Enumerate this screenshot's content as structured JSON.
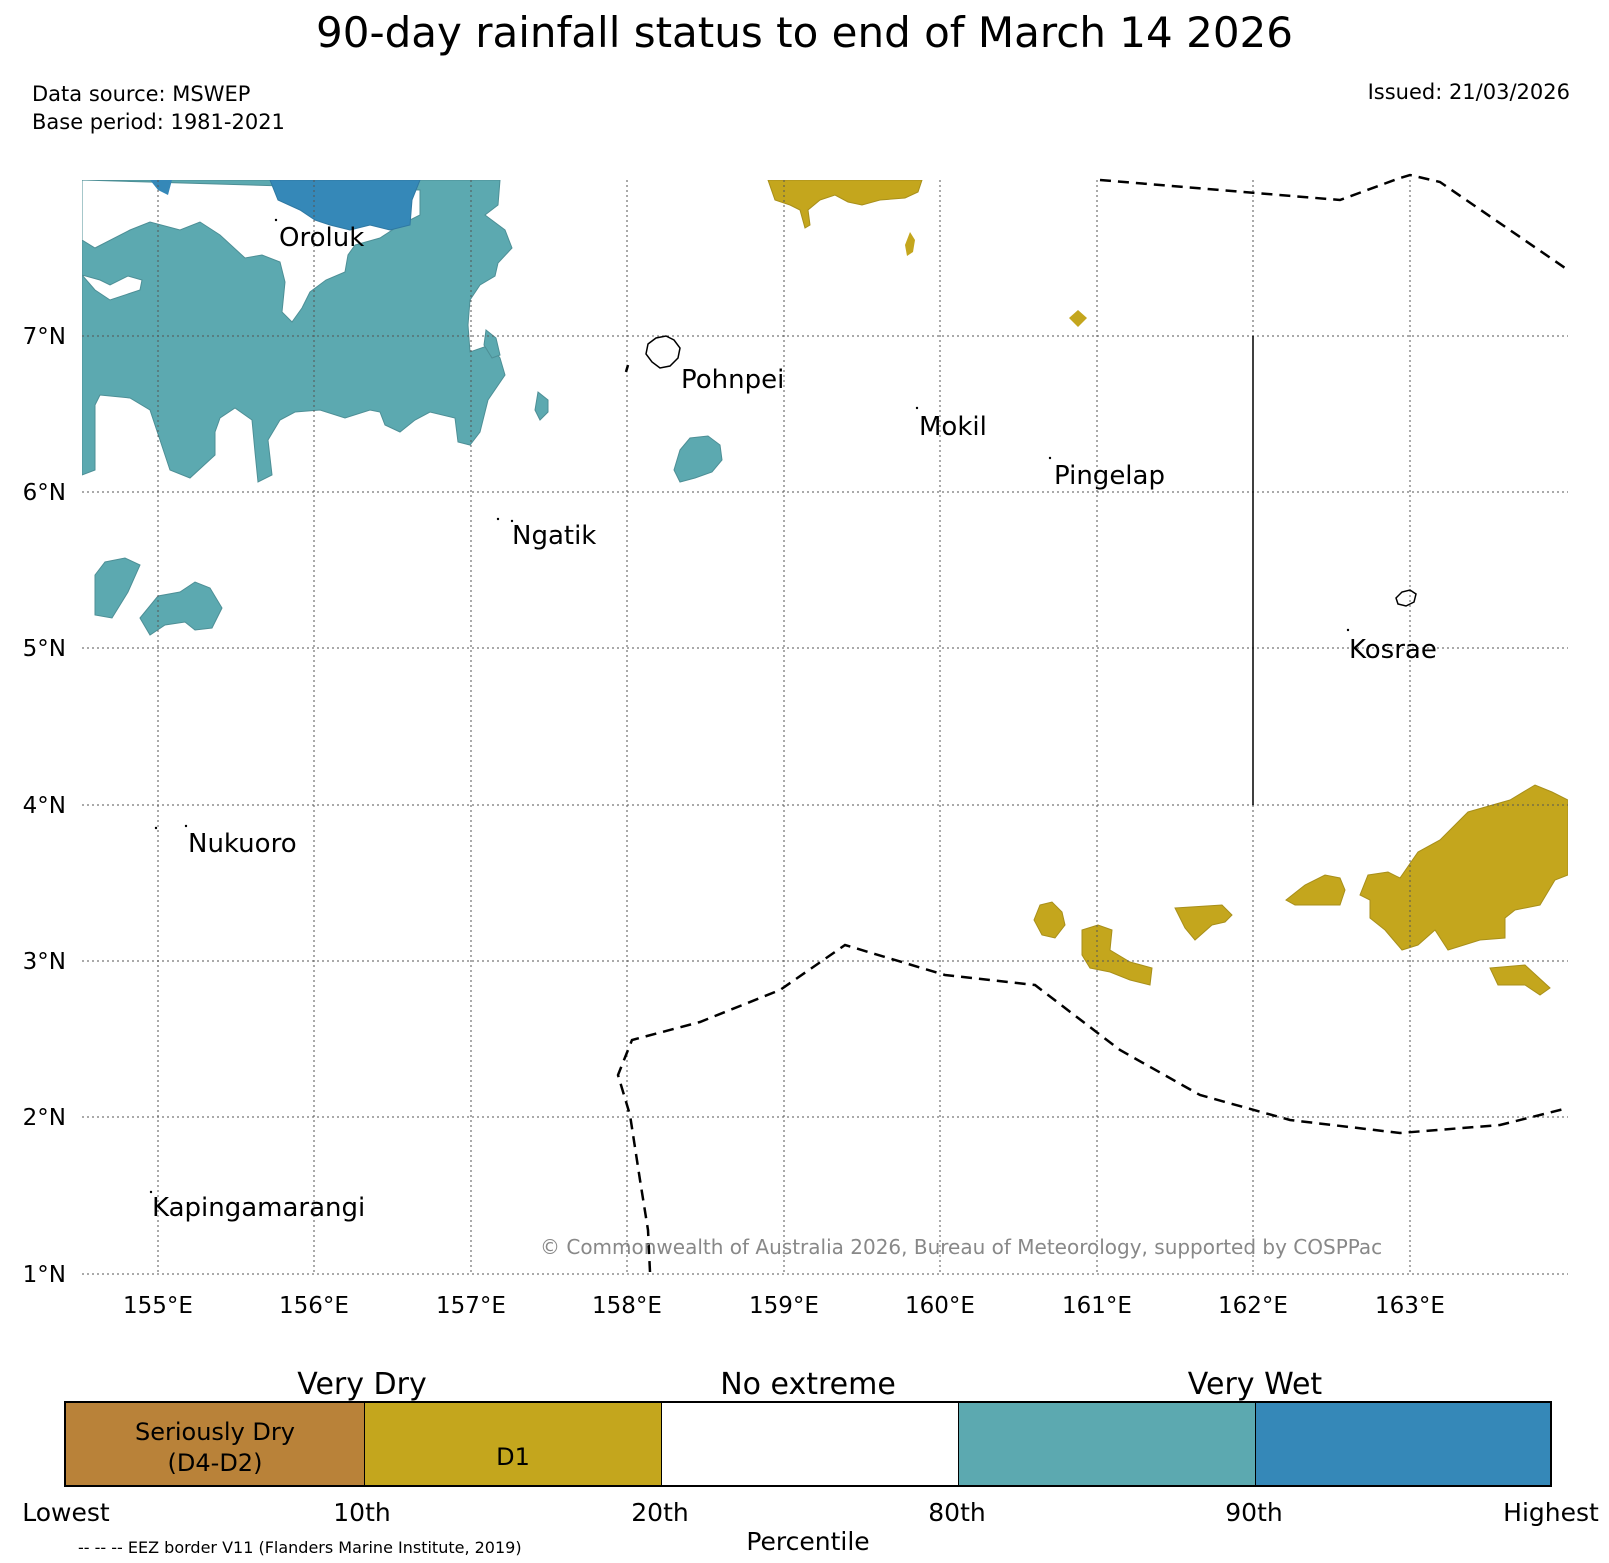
{
  "header": {
    "title": "90-day rainfall status to end of March 14 2026",
    "data_source": "Data source: MSWEP",
    "base_period": "Base period: 1981-2021",
    "issued": "Issued: 21/03/2026"
  },
  "colors": {
    "seriously_dry": "#b98239",
    "d1": "#c4a61d",
    "no_extreme": "#ffffff",
    "very_wet_80_90": "#5ca9b0",
    "very_wet_90_plus": "#3588b8",
    "copyright_gray": "#888888"
  },
  "map": {
    "lon_ticks": [
      "155°E",
      "156°E",
      "157°E",
      "158°E",
      "159°E",
      "160°E",
      "161°E",
      "162°E",
      "163°E"
    ],
    "lat_ticks": [
      "7°N",
      "6°N",
      "5°N",
      "4°N",
      "3°N",
      "2°N",
      "1°N"
    ],
    "lon_range": [
      154.5,
      164.0
    ],
    "lat_range": [
      1.0,
      8.0
    ],
    "places": [
      {
        "name": "Oroluk",
        "lon": 155.75,
        "lat": 7.65
      },
      {
        "name": "Pohnpei",
        "lon": 158.33,
        "lat": 6.75
      },
      {
        "name": "Mokil",
        "lon": 159.83,
        "lat": 6.44
      },
      {
        "name": "Pingelap",
        "lon": 160.72,
        "lat": 6.12
      },
      {
        "name": "Ngatik",
        "lon": 157.25,
        "lat": 5.75
      },
      {
        "name": "Kosrae",
        "lon": 162.6,
        "lat": 5.0
      },
      {
        "name": "Nukuoro",
        "lon": 155.18,
        "lat": 3.75
      },
      {
        "name": "Kapingamarangi",
        "lon": 154.97,
        "lat": 1.42
      }
    ],
    "copyright": "© Commonwealth of Australia 2026, Bureau of Meteorology, supported by COSPPac"
  },
  "legend": {
    "group_very_dry": "Very Dry",
    "group_no_extreme": "No extreme",
    "group_very_wet": "Very Wet",
    "seg_seriously_dry_line1": "Seriously Dry",
    "seg_seriously_dry_line2": "(D4-D2)",
    "seg_d1": "D1",
    "pct_lowest": "Lowest",
    "pct_10": "10th",
    "pct_20": "20th",
    "pct_80": "80th",
    "pct_90": "90th",
    "pct_highest": "Highest",
    "axis_title": "Percentile",
    "eez_note": "-- -- -- EEZ border V11 (Flanders Marine Institute, 2019)"
  }
}
